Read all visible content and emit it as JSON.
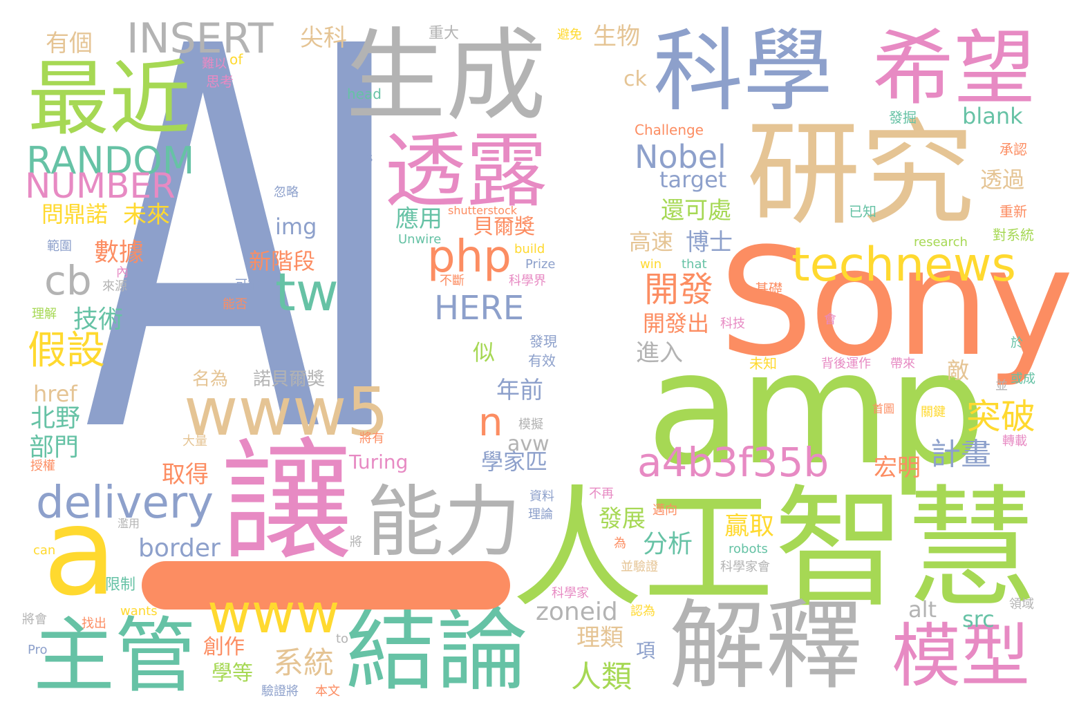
{
  "palette": {
    "slate_blue": "#8da0cb",
    "lime": "#a6d854",
    "coral": "#fc8d62",
    "pink": "#e78ac3",
    "tan": "#e5c494",
    "gray": "#b3b3b3",
    "teal": "#66c2a5",
    "yellow": "#ffd92f"
  },
  "words": [
    {
      "text": "AI",
      "color": "#8da0cb"
    },
    {
      "text": "amp",
      "color": "#a6d854"
    },
    {
      "text": "Sony",
      "color": "#fc8d62"
    },
    {
      "text": "生成",
      "color": "#b3b3b3"
    },
    {
      "text": "科學",
      "color": "#8da0cb"
    },
    {
      "text": "希望",
      "color": "#e78ac3"
    },
    {
      "text": "研究",
      "color": "#e5c494"
    },
    {
      "text": "最近",
      "color": "#a6d854"
    },
    {
      "text": "透露",
      "color": "#e78ac3"
    },
    {
      "text": "讓",
      "color": "#e78ac3"
    },
    {
      "text": "人工智慧",
      "color": "#a6d854"
    },
    {
      "text": "能力",
      "color": "#b3b3b3"
    },
    {
      "text": "解釋",
      "color": "#b3b3b3"
    },
    {
      "text": "結論",
      "color": "#66c2a5"
    },
    {
      "text": "主管",
      "color": "#66c2a5"
    },
    {
      "text": "模型",
      "color": "#e78ac3"
    },
    {
      "text": "a",
      "color": "#ffd92f"
    },
    {
      "text": "—",
      "color": "#fc8d62"
    },
    {
      "text": "www5",
      "color": "#e5c494"
    },
    {
      "text": "www",
      "color": "#ffd92f"
    },
    {
      "text": "delivery",
      "color": "#8da0cb"
    },
    {
      "text": "technews",
      "color": "#ffd92f"
    },
    {
      "text": "a4b3f35b",
      "color": "#e78ac3"
    },
    {
      "text": "INSERT",
      "color": "#b3b3b3"
    },
    {
      "text": "RANDOM",
      "color": "#66c2a5"
    },
    {
      "text": "NUMBER",
      "color": "#e78ac3"
    },
    {
      "text": "php",
      "color": "#fc8d62"
    },
    {
      "text": "tw",
      "color": "#66c2a5"
    },
    {
      "text": "cb",
      "color": "#b3b3b3"
    },
    {
      "text": "HERE",
      "color": "#8da0cb"
    },
    {
      "text": "Nobel",
      "color": "#8da0cb"
    },
    {
      "text": "n",
      "color": "#fc8d62"
    },
    {
      "text": "假設",
      "color": "#ffd92f"
    },
    {
      "text": "開發",
      "color": "#fc8d62"
    },
    {
      "text": "突破",
      "color": "#ffd92f"
    },
    {
      "text": "計畫",
      "color": "#8da0cb"
    },
    {
      "text": "border",
      "color": "#8da0cb"
    },
    {
      "text": "zoneid",
      "color": "#b3b3b3"
    },
    {
      "text": "系統",
      "color": "#e5c494"
    },
    {
      "text": "人類",
      "color": "#a6d854"
    },
    {
      "text": "發展",
      "color": "#a6d854"
    },
    {
      "text": "分析",
      "color": "#66c2a5"
    },
    {
      "text": "贏取",
      "color": "#ffd92f"
    },
    {
      "text": "數據",
      "color": "#fc8d62"
    },
    {
      "text": "技術",
      "color": "#66c2a5"
    },
    {
      "text": "北野",
      "color": "#66c2a5"
    },
    {
      "text": "部門",
      "color": "#66c2a5"
    },
    {
      "text": "年前",
      "color": "#8da0cb"
    },
    {
      "text": "學家匹",
      "color": "#8da0cb"
    },
    {
      "text": "宏明",
      "color": "#fc8d62"
    },
    {
      "text": "取得",
      "color": "#fc8d62"
    },
    {
      "text": "創作",
      "color": "#fc8d62"
    },
    {
      "text": "學等",
      "color": "#a6d854"
    },
    {
      "text": "理類",
      "color": "#e5c494"
    },
    {
      "text": "應用",
      "color": "#66c2a5"
    },
    {
      "text": "貝爾獎",
      "color": "#fc8d62"
    },
    {
      "text": "新階段",
      "color": "#fc8d62"
    },
    {
      "text": "問鼎諾",
      "color": "#ffd92f"
    },
    {
      "text": "未來",
      "color": "#ffd92f"
    },
    {
      "text": "有個",
      "color": "#e5c494"
    },
    {
      "text": "尖科",
      "color": "#e5c494"
    },
    {
      "text": "生物",
      "color": "#e5c494"
    },
    {
      "text": "還可處",
      "color": "#a6d854"
    },
    {
      "text": "高速",
      "color": "#e5c494"
    },
    {
      "text": "博士",
      "color": "#8da0cb"
    },
    {
      "text": "透過",
      "color": "#e5c494"
    },
    {
      "text": "開發出",
      "color": "#fc8d62"
    },
    {
      "text": "進入",
      "color": "#b3b3b3"
    },
    {
      "text": "blank",
      "color": "#66c2a5"
    },
    {
      "text": "target",
      "color": "#8da0cb"
    },
    {
      "text": "img",
      "color": "#8da0cb"
    },
    {
      "text": "href",
      "color": "#e5c494"
    },
    {
      "text": "avw",
      "color": "#b3b3b3"
    },
    {
      "text": "Turing",
      "color": "#e78ac3"
    },
    {
      "text": "src",
      "color": "#66c2a5"
    },
    {
      "text": "alt",
      "color": "#b3b3b3"
    },
    {
      "text": "ck",
      "color": "#e5c494"
    },
    {
      "text": "名為",
      "color": "#e5c494"
    },
    {
      "text": "諾貝爾獎",
      "color": "#b3b3b3"
    },
    {
      "text": "似",
      "color": "#a6d854"
    },
    {
      "text": "敵",
      "color": "#e5c494"
    },
    {
      "text": "項",
      "color": "#8da0cb"
    },
    {
      "text": "Challenge",
      "color": "#fc8d62"
    },
    {
      "text": "head",
      "color": "#66c2a5"
    },
    {
      "text": "重大",
      "color": "#b3b3b3"
    },
    {
      "text": "避免",
      "color": "#ffd92f"
    },
    {
      "text": "難以",
      "color": "#e78ac3"
    },
    {
      "text": "思考",
      "color": "#e78ac3"
    },
    {
      "text": "of",
      "color": "#ffd92f"
    },
    {
      "text": "發掘",
      "color": "#66c2a5"
    },
    {
      "text": "承認",
      "color": "#fc8d62"
    },
    {
      "text": "已知",
      "color": "#66c2a5"
    },
    {
      "text": "重新",
      "color": "#fc8d62"
    },
    {
      "text": "對系統",
      "color": "#a6d854"
    },
    {
      "text": "research",
      "color": "#a6d854"
    },
    {
      "text": "s",
      "color": "#8da0cb"
    },
    {
      "text": "忽略",
      "color": "#8da0cb"
    },
    {
      "text": "shutterstock",
      "color": "#fc8d62"
    },
    {
      "text": "Unwire",
      "color": "#66c2a5"
    },
    {
      "text": "build",
      "color": "#ffd92f"
    },
    {
      "text": "Prize",
      "color": "#8da0cb"
    },
    {
      "text": "win",
      "color": "#ffd92f"
    },
    {
      "text": "that",
      "color": "#66c2a5"
    },
    {
      "text": "範圍",
      "color": "#8da0cb"
    },
    {
      "text": "內",
      "color": "#e78ac3"
    },
    {
      "text": "來源",
      "color": "#b3b3b3"
    },
    {
      "text": "可能",
      "color": "#8da0cb"
    },
    {
      "text": "能否",
      "color": "#fc8d62"
    },
    {
      "text": "不斷",
      "color": "#fc8d62"
    },
    {
      "text": "科學界",
      "color": "#e78ac3"
    },
    {
      "text": "基礎",
      "color": "#fc8d62"
    },
    {
      "text": "會",
      "color": "#e78ac3"
    },
    {
      "text": "理解",
      "color": "#a6d854"
    },
    {
      "text": "科技",
      "color": "#e78ac3"
    },
    {
      "text": "發現",
      "color": "#8da0cb"
    },
    {
      "text": "有效",
      "color": "#8da0cb"
    },
    {
      "text": "未知",
      "color": "#ffd92f"
    },
    {
      "text": "背後運作",
      "color": "#e78ac3"
    },
    {
      "text": "帶來",
      "color": "#e78ac3"
    },
    {
      "text": "於",
      "color": "#66c2a5"
    },
    {
      "text": "並",
      "color": "#b3b3b3"
    },
    {
      "text": "或成",
      "color": "#66c2a5"
    },
    {
      "text": "首圖",
      "color": "#fc8d62"
    },
    {
      "text": "關鍵",
      "color": "#ffd92f"
    },
    {
      "text": "模擬",
      "color": "#b3b3b3"
    },
    {
      "text": "大量",
      "color": "#e5c494"
    },
    {
      "text": "將有",
      "color": "#fc8d62"
    },
    {
      "text": "轉載",
      "color": "#e78ac3"
    },
    {
      "text": "授權",
      "color": "#fc8d62"
    },
    {
      "text": "資料",
      "color": "#8da0cb"
    },
    {
      "text": "理論",
      "color": "#8da0cb"
    },
    {
      "text": "不再",
      "color": "#e78ac3"
    },
    {
      "text": "邁向",
      "color": "#fc8d62"
    },
    {
      "text": "濫用",
      "color": "#b3b3b3"
    },
    {
      "text": "將",
      "color": "#b3b3b3"
    },
    {
      "text": "為",
      "color": "#fc8d62"
    },
    {
      "text": "並驗證",
      "color": "#e5c494"
    },
    {
      "text": "robots",
      "color": "#66c2a5"
    },
    {
      "text": "can",
      "color": "#ffd92f"
    },
    {
      "text": "科學家會",
      "color": "#b3b3b3"
    },
    {
      "text": "限制",
      "color": "#66c2a5"
    },
    {
      "text": "wants",
      "color": "#ffd92f"
    },
    {
      "text": "科學家",
      "color": "#e78ac3"
    },
    {
      "text": "認為",
      "color": "#ffd92f"
    },
    {
      "text": "領域",
      "color": "#b3b3b3"
    },
    {
      "text": "將會",
      "color": "#b3b3b3"
    },
    {
      "text": "找出",
      "color": "#fc8d62"
    },
    {
      "text": "Pro",
      "color": "#8da0cb"
    },
    {
      "text": "to",
      "color": "#b3b3b3"
    },
    {
      "text": "驗證將",
      "color": "#8da0cb"
    },
    {
      "text": "本文",
      "color": "#fc8d62"
    }
  ]
}
